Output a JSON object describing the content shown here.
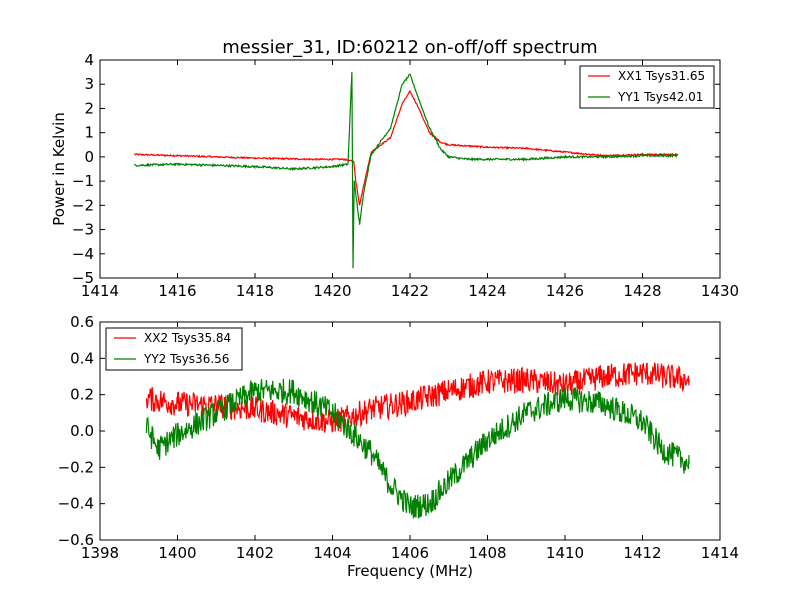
{
  "colors": {
    "red_series": "#ff0000",
    "green_series": "#008000"
  },
  "figure": {
    "title": "messier_31, ID:60212 on-off/off spectrum"
  },
  "chart_data": [
    {
      "type": "line",
      "title": "messier_31, ID:60212 on-off/off spectrum",
      "xlabel": "",
      "ylabel": "Power in Kelvin",
      "xlim": [
        1414,
        1430
      ],
      "ylim": [
        -5,
        4
      ],
      "x_ticks": [
        "1414",
        "1416",
        "1418",
        "1420",
        "1422",
        "1424",
        "1426",
        "1428",
        "1430"
      ],
      "y_ticks": [
        "−5",
        "−4",
        "−3",
        "−2",
        "−1",
        "0",
        "1",
        "2",
        "3",
        "4"
      ],
      "grid": false,
      "legend_position": "top-right",
      "series": [
        {
          "name": "XX1 Tsys31.65",
          "color": "#ff0000",
          "noise": 0.03,
          "x": [
            1414.9,
            1416,
            1418,
            1419.5,
            1420.3,
            1420.55,
            1420.6,
            1420.7,
            1420.8,
            1421,
            1421.5,
            1421.8,
            1422,
            1422.2,
            1422.5,
            1422.8,
            1423,
            1424,
            1425,
            1426,
            1427,
            1428,
            1428.9
          ],
          "y": [
            0.1,
            0.05,
            -0.05,
            -0.1,
            -0.1,
            -0.2,
            -1.0,
            -2.0,
            -1.2,
            0.2,
            0.8,
            2.2,
            2.7,
            2.1,
            1.0,
            0.6,
            0.5,
            0.4,
            0.35,
            0.2,
            0.05,
            0.1,
            0.1
          ]
        },
        {
          "name": "YY1 Tsys42.01",
          "color": "#008000",
          "noise": 0.04,
          "x": [
            1414.9,
            1416,
            1418,
            1419,
            1420,
            1420.4,
            1420.5,
            1420.53,
            1420.56,
            1420.7,
            1420.8,
            1421,
            1421.5,
            1421.8,
            1422,
            1422.2,
            1422.5,
            1422.8,
            1423,
            1423.5,
            1424,
            1425,
            1426,
            1427,
            1428,
            1428.9
          ],
          "y": [
            -0.35,
            -0.3,
            -0.4,
            -0.5,
            -0.4,
            -0.3,
            3.5,
            -4.6,
            -1.0,
            -2.8,
            -1.5,
            0.1,
            1.2,
            3.0,
            3.4,
            2.5,
            1.2,
            0.3,
            0.0,
            -0.1,
            -0.1,
            -0.1,
            0.0,
            0.0,
            0.05,
            0.05
          ]
        }
      ]
    },
    {
      "type": "line",
      "title": "",
      "xlabel": "Frequency (MHz)",
      "ylabel": "",
      "xlim": [
        1398,
        1414
      ],
      "ylim": [
        -0.6,
        0.6
      ],
      "x_ticks": [
        "1398",
        "1400",
        "1402",
        "1404",
        "1406",
        "1408",
        "1410",
        "1412",
        "1414"
      ],
      "y_ticks": [
        "−0.6",
        "−0.4",
        "−0.2",
        "0.0",
        "0.2",
        "0.4",
        "0.6"
      ],
      "grid": false,
      "legend_position": "top-left",
      "series": [
        {
          "name": "XX2 Tsys35.84",
          "color": "#ff0000",
          "noise": 0.07,
          "x": [
            1399.2,
            1400,
            1401,
            1402,
            1403,
            1404,
            1404.5,
            1405,
            1406,
            1407,
            1408,
            1409,
            1410,
            1411,
            1412,
            1413.2
          ],
          "y": [
            0.18,
            0.15,
            0.14,
            0.12,
            0.08,
            0.05,
            0.08,
            0.12,
            0.16,
            0.22,
            0.27,
            0.28,
            0.25,
            0.3,
            0.32,
            0.28
          ]
        },
        {
          "name": "YY2 Tsys36.56",
          "color": "#008000",
          "noise": 0.07,
          "x": [
            1399.2,
            1399.5,
            1400,
            1401,
            1402,
            1403,
            1404,
            1405,
            1405.5,
            1406,
            1406.5,
            1407,
            1408,
            1409,
            1410,
            1411,
            1412,
            1412.5,
            1413.2
          ],
          "y": [
            0.02,
            -0.1,
            -0.02,
            0.1,
            0.22,
            0.22,
            0.1,
            -0.12,
            -0.3,
            -0.42,
            -0.4,
            -0.28,
            -0.05,
            0.1,
            0.18,
            0.15,
            0.05,
            -0.1,
            -0.18
          ]
        }
      ]
    }
  ]
}
